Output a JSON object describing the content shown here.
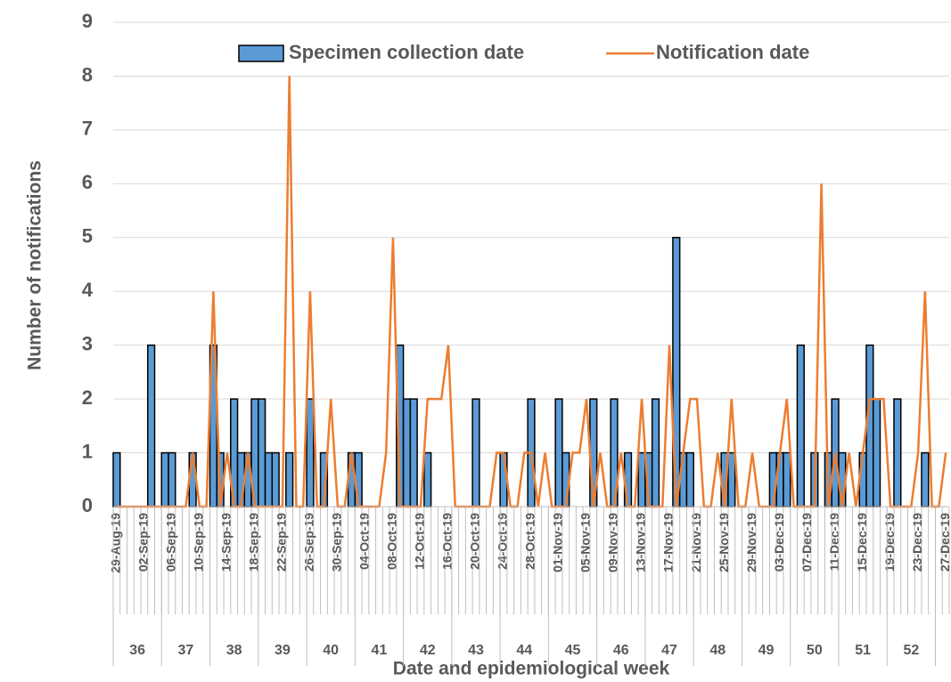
{
  "chart_data": {
    "type": "bar",
    "x_label": "Date and epidemiological week",
    "y_label": "Number of notifications",
    "categories": [
      "29-Aug-19",
      null,
      null,
      null,
      "02-Sep-19",
      null,
      null,
      null,
      "06-Sep-19",
      null,
      null,
      null,
      "10-Sep-19",
      null,
      null,
      null,
      "14-Sep-19",
      null,
      null,
      null,
      "18-Sep-19",
      null,
      null,
      null,
      "22-Sep-19",
      null,
      null,
      null,
      "26-Sep-19",
      null,
      null,
      null,
      "30-Sep-19",
      null,
      null,
      null,
      "04-Oct-19",
      null,
      null,
      null,
      "08-Oct-19",
      null,
      null,
      null,
      "12-Oct-19",
      null,
      null,
      null,
      "16-Oct-19",
      null,
      null,
      null,
      "20-Oct-19",
      null,
      null,
      null,
      "24-Oct-19",
      null,
      null,
      null,
      "28-Oct-19",
      null,
      null,
      null,
      "01-Nov-19",
      null,
      null,
      null,
      "05-Nov-19",
      null,
      null,
      null,
      "09-Nov-19",
      null,
      null,
      null,
      "13-Nov-19",
      null,
      null,
      null,
      "17-Nov-19",
      null,
      null,
      null,
      "21-Nov-19",
      null,
      null,
      null,
      "25-Nov-19",
      null,
      null,
      null,
      "29-Nov-19",
      null,
      null,
      null,
      "03-Dec-19",
      null,
      null,
      null,
      "07-Dec-19",
      null,
      null,
      null,
      "11-Dec-19",
      null,
      null,
      null,
      "15-Dec-19",
      null,
      null,
      null,
      "19-Dec-19",
      null,
      null,
      null,
      "23-Dec-19",
      null,
      null,
      null,
      "27-Dec-19"
    ],
    "weeks": [
      {
        "label": "36",
        "days": 7
      },
      {
        "label": "37",
        "days": 7
      },
      {
        "label": "38",
        "days": 7
      },
      {
        "label": "39",
        "days": 7
      },
      {
        "label": "40",
        "days": 7
      },
      {
        "label": "41",
        "days": 7
      },
      {
        "label": "42",
        "days": 7
      },
      {
        "label": "43",
        "days": 7
      },
      {
        "label": "44",
        "days": 7
      },
      {
        "label": "45",
        "days": 7
      },
      {
        "label": "46",
        "days": 7
      },
      {
        "label": "47",
        "days": 7
      },
      {
        "label": "48",
        "days": 7
      },
      {
        "label": "49",
        "days": 7
      },
      {
        "label": "50",
        "days": 7
      },
      {
        "label": "51",
        "days": 7
      },
      {
        "label": "52",
        "days": 7
      }
    ],
    "series": [
      {
        "name": "Specimen collection date",
        "type": "bar",
        "color": "#5b9bd5",
        "values": [
          1,
          0,
          0,
          0,
          0,
          3,
          0,
          1,
          1,
          0,
          0,
          1,
          0,
          0,
          3,
          1,
          0,
          2,
          1,
          1,
          2,
          2,
          1,
          1,
          0,
          1,
          0,
          0,
          2,
          0,
          1,
          0,
          0,
          0,
          1,
          1,
          0,
          0,
          0,
          0,
          0,
          3,
          2,
          2,
          0,
          1,
          0,
          0,
          0,
          0,
          0,
          0,
          2,
          0,
          0,
          0,
          1,
          0,
          0,
          0,
          2,
          0,
          0,
          0,
          2,
          1,
          0,
          0,
          0,
          2,
          0,
          0,
          2,
          0,
          1,
          0,
          1,
          1,
          2,
          0,
          0,
          5,
          1,
          1,
          0,
          0,
          0,
          0,
          1,
          1,
          0,
          0,
          0,
          0,
          0,
          1,
          1,
          1,
          0,
          3,
          0,
          1,
          0,
          1,
          2,
          1,
          0,
          0,
          1,
          3,
          2,
          0,
          0,
          2,
          0,
          0,
          0,
          1,
          0,
          0,
          0
        ]
      },
      {
        "name": "Notification date",
        "type": "line",
        "color": "#ed7d31",
        "values": [
          0,
          0,
          0,
          0,
          0,
          0,
          0,
          0,
          0,
          0,
          0,
          1,
          0,
          0,
          4,
          0,
          1,
          0,
          0,
          1,
          0,
          0,
          0,
          0,
          0,
          8,
          0,
          0,
          4,
          0,
          0,
          2,
          0,
          0,
          1,
          0,
          0,
          0,
          0,
          1,
          5,
          0,
          0,
          0,
          0,
          2,
          2,
          2,
          3,
          0,
          0,
          0,
          0,
          0,
          0,
          1,
          1,
          0,
          0,
          1,
          1,
          0,
          1,
          0,
          0,
          0,
          1,
          1,
          2,
          0,
          1,
          0,
          0,
          1,
          0,
          0,
          2,
          0,
          0,
          0,
          3,
          0,
          1,
          2,
          2,
          0,
          0,
          1,
          0,
          2,
          0,
          0,
          1,
          0,
          0,
          0,
          1,
          2,
          0,
          0,
          0,
          0,
          6,
          0,
          1,
          0,
          1,
          0,
          1,
          2,
          2,
          2,
          0,
          0,
          0,
          0,
          1,
          4,
          0,
          0,
          1
        ]
      }
    ],
    "ylim": [
      0,
      9
    ],
    "yticks": [
      0,
      1,
      2,
      3,
      4,
      5,
      6,
      7,
      8,
      9
    ],
    "grid": true,
    "legend": "top"
  }
}
